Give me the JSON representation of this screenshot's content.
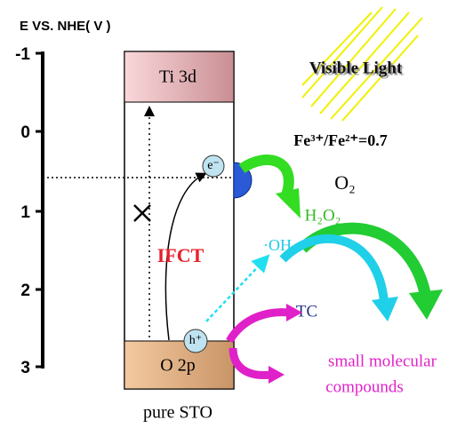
{
  "axis": {
    "label": "E VS. NHE( V )",
    "ticks": [
      "-1",
      "0",
      "1",
      "2",
      "3"
    ]
  },
  "bands": {
    "conduction": "Ti 3d",
    "valence": "O 2p",
    "material": "pure STO"
  },
  "labels": {
    "light": "Visible Light",
    "redox": "Fe³⁺/Fe²⁺=0.7",
    "oxygen": "O₂",
    "peroxide": "H₂O₂",
    "hydroxyl": "·OH",
    "pollutant": "TC",
    "products_1": "small molecular",
    "products_2": "compounds",
    "transfer": "IFCT",
    "electron": "e⁻",
    "hole": "h⁺"
  }
}
